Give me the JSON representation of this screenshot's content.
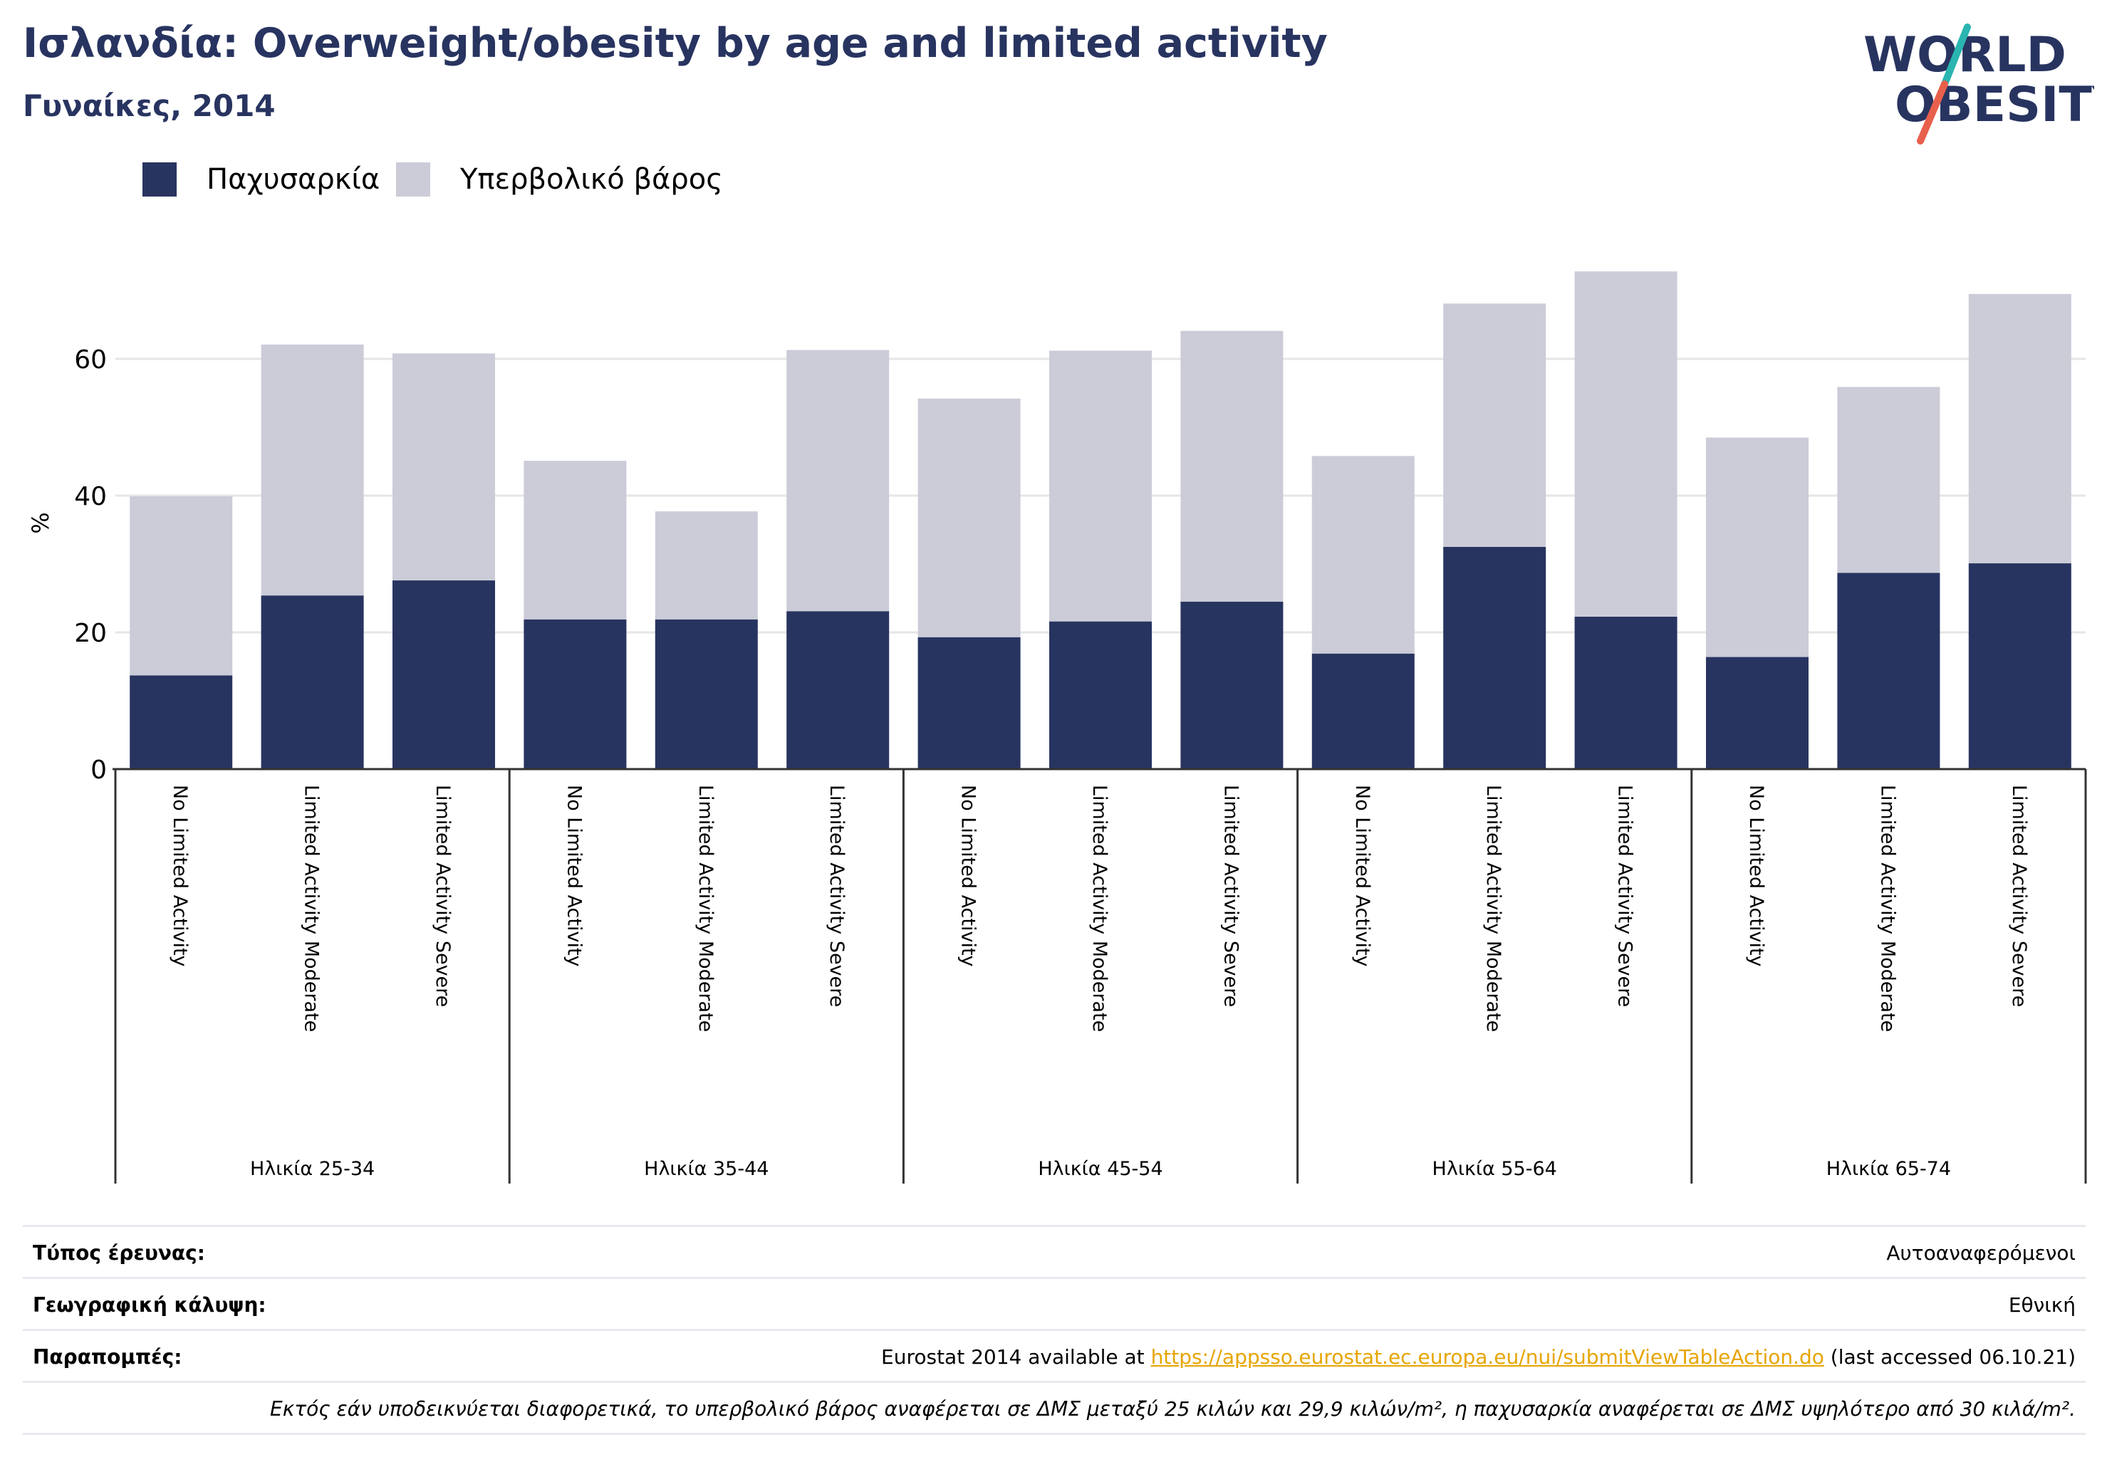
{
  "header": {
    "title": "Ισλανδία: Overweight/obesity by age and limited activity",
    "subtitle": "Γυναίκες, 2014"
  },
  "logo": {
    "line1": "WORLD",
    "line2": "OBESITY",
    "colors": {
      "text": "#283460",
      "slash_teal": "#2ab5b0",
      "slash_coral": "#e8604c"
    }
  },
  "colors": {
    "obesity": "#283460",
    "overweight": "#cbccd8",
    "grid": "#e6e6e6",
    "axis": "#333333",
    "link": "#e6a500"
  },
  "chart_data": {
    "type": "bar",
    "stacked": true,
    "ylabel": "%",
    "ylim": [
      0,
      75
    ],
    "yticks": [
      0,
      20,
      40,
      60
    ],
    "grid": true,
    "legend_position": "top-left",
    "groups": [
      {
        "label": "Ηλικία 25-34",
        "categories": [
          "No Limited Activity",
          "Limited Activity Moderate",
          "Limited Activity Severe"
        ]
      },
      {
        "label": "Ηλικία 35-44",
        "categories": [
          "No Limited Activity",
          "Limited Activity Moderate",
          "Limited Activity Severe"
        ]
      },
      {
        "label": "Ηλικία 45-54",
        "categories": [
          "No Limited Activity",
          "Limited Activity Moderate",
          "Limited Activity Severe"
        ]
      },
      {
        "label": "Ηλικία 55-64",
        "categories": [
          "No Limited Activity",
          "Limited Activity Moderate",
          "Limited Activity Severe"
        ]
      },
      {
        "label": "Ηλικία 65-74",
        "categories": [
          "No Limited Activity",
          "Limited Activity Moderate",
          "Limited Activity Severe"
        ]
      }
    ],
    "series": [
      {
        "name": "Παχυσαρκία",
        "color": "#283460",
        "values": [
          13.7,
          25.4,
          27.6,
          21.9,
          21.9,
          23.1,
          19.3,
          21.6,
          24.5,
          16.9,
          32.5,
          22.3,
          16.4,
          28.7,
          30.1
        ]
      },
      {
        "name": "Υπερβολικό βάρος",
        "color": "#cbccd8",
        "values": [
          26.2,
          36.7,
          33.2,
          23.2,
          15.8,
          38.2,
          34.9,
          39.6,
          39.6,
          28.9,
          35.6,
          50.5,
          32.1,
          27.2,
          39.4
        ]
      }
    ]
  },
  "info": {
    "survey_label": "Τύπος έρευνας:",
    "survey_value": "Αυτοαναφερόμενοι",
    "coverage_label": "Γεωγραφική κάλυψη:",
    "coverage_value": "Εθνική",
    "refs_label": "Παραπομπές:",
    "refs_prefix": "Eurostat 2014 available at ",
    "refs_link": "https://appsso.eurostat.ec.europa.eu/nui/submitViewTableAction.do",
    "refs_suffix": " (last accessed 06.10.21)",
    "note": "Εκτός εάν υποδεικνύεται διαφορετικά, το υπερβολικό βάρος αναφέρεται σε ΔΜΣ μεταξύ 25 κιλών και 29,9 κιλών/m², η παχυσαρκία αναφέρεται σε ΔΜΣ υψηλότερο από 30 κιλά/m²."
  }
}
